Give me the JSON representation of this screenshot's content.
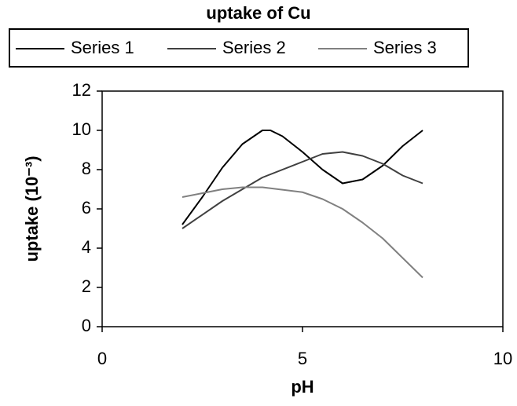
{
  "chart_data": {
    "type": "line",
    "title": "uptake of Cu",
    "x_label": "pH",
    "y_label": "uptake (10⁻³)",
    "xlim": [
      0,
      10
    ],
    "xticks": [
      0,
      5,
      10
    ],
    "ylim": [
      0,
      12
    ],
    "yticks": [
      0,
      2,
      4,
      6,
      8,
      10,
      12
    ],
    "grid": false,
    "legend": "top",
    "series": [
      {
        "name": "Series 1",
        "color": "#000000",
        "x": [
          2,
          2.5,
          3,
          3.5,
          4,
          4.2,
          4.5,
          5,
          5.5,
          6,
          6.5,
          7,
          7.5,
          8
        ],
        "values": [
          5.2,
          6.6,
          8.1,
          9.3,
          10,
          10,
          9.7,
          8.9,
          8.0,
          7.3,
          7.5,
          8.2,
          9.2,
          10
        ]
      },
      {
        "name": "Series 2",
        "color": "#404040",
        "x": [
          2,
          3,
          4,
          5,
          5.5,
          6,
          6.5,
          7,
          7.5,
          8
        ],
        "values": [
          5.0,
          6.4,
          7.6,
          8.4,
          8.8,
          8.9,
          8.7,
          8.3,
          7.7,
          7.3
        ]
      },
      {
        "name": "Series 3",
        "color": "#808080",
        "x": [
          2,
          3,
          3.5,
          4,
          5,
          5.5,
          6,
          6.5,
          7,
          7.5,
          8
        ],
        "values": [
          6.6,
          7.0,
          7.1,
          7.1,
          6.85,
          6.5,
          6.0,
          5.3,
          4.5,
          3.5,
          2.5
        ]
      }
    ]
  }
}
